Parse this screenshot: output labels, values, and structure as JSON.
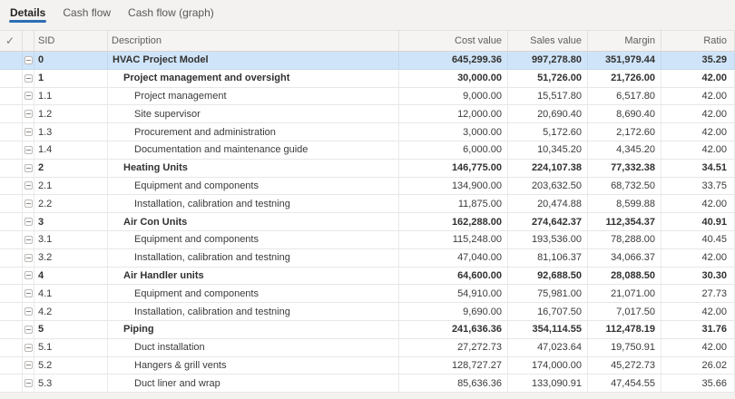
{
  "tabs": [
    {
      "label": "Details",
      "active": true
    },
    {
      "label": "Cash flow",
      "active": false
    },
    {
      "label": "Cash flow (graph)",
      "active": false
    }
  ],
  "icons": {
    "select_all_check": "✓",
    "collapse_box": "minus-in-square"
  },
  "colors": {
    "accent_blue": "#2d6fb4",
    "selected_row_bg": "#cfe4f8",
    "page_bg": "#f3f2f1",
    "grid_line": "#e9e7e5",
    "header_text": "#5f5d5b",
    "body_text": "#3b3a39"
  },
  "table": {
    "headers": {
      "sid": "SID",
      "description": "Description",
      "cost": "Cost value",
      "sales": "Sales value",
      "margin": "Margin",
      "ratio": "Ratio"
    },
    "rows": [
      {
        "sid": "0",
        "desc": "HVAC Project Model",
        "cost": "645,299.36",
        "sales": "997,278.80",
        "margin": "351,979.44",
        "ratio": "35.29",
        "level": 0,
        "bold": true,
        "selected": true
      },
      {
        "sid": "1",
        "desc": "Project management and oversight",
        "cost": "30,000.00",
        "sales": "51,726.00",
        "margin": "21,726.00",
        "ratio": "42.00",
        "level": 1,
        "bold": true,
        "selected": false
      },
      {
        "sid": "1.1",
        "desc": "Project management",
        "cost": "9,000.00",
        "sales": "15,517.80",
        "margin": "6,517.80",
        "ratio": "42.00",
        "level": 2,
        "bold": false,
        "selected": false
      },
      {
        "sid": "1.2",
        "desc": "Site supervisor",
        "cost": "12,000.00",
        "sales": "20,690.40",
        "margin": "8,690.40",
        "ratio": "42.00",
        "level": 2,
        "bold": false,
        "selected": false
      },
      {
        "sid": "1.3",
        "desc": "Procurement and administration",
        "cost": "3,000.00",
        "sales": "5,172.60",
        "margin": "2,172.60",
        "ratio": "42.00",
        "level": 2,
        "bold": false,
        "selected": false
      },
      {
        "sid": "1.4",
        "desc": "Documentation and maintenance guide",
        "cost": "6,000.00",
        "sales": "10,345.20",
        "margin": "4,345.20",
        "ratio": "42.00",
        "level": 2,
        "bold": false,
        "selected": false
      },
      {
        "sid": "2",
        "desc": "Heating Units",
        "cost": "146,775.00",
        "sales": "224,107.38",
        "margin": "77,332.38",
        "ratio": "34.51",
        "level": 1,
        "bold": true,
        "selected": false
      },
      {
        "sid": "2.1",
        "desc": "Equipment and components",
        "cost": "134,900.00",
        "sales": "203,632.50",
        "margin": "68,732.50",
        "ratio": "33.75",
        "level": 2,
        "bold": false,
        "selected": false
      },
      {
        "sid": "2.2",
        "desc": "Installation, calibration and testning",
        "cost": "11,875.00",
        "sales": "20,474.88",
        "margin": "8,599.88",
        "ratio": "42.00",
        "level": 2,
        "bold": false,
        "selected": false
      },
      {
        "sid": "3",
        "desc": "Air Con Units",
        "cost": "162,288.00",
        "sales": "274,642.37",
        "margin": "112,354.37",
        "ratio": "40.91",
        "level": 1,
        "bold": true,
        "selected": false
      },
      {
        "sid": "3.1",
        "desc": "Equipment and components",
        "cost": "115,248.00",
        "sales": "193,536.00",
        "margin": "78,288.00",
        "ratio": "40.45",
        "level": 2,
        "bold": false,
        "selected": false
      },
      {
        "sid": "3.2",
        "desc": "Installation, calibration and testning",
        "cost": "47,040.00",
        "sales": "81,106.37",
        "margin": "34,066.37",
        "ratio": "42.00",
        "level": 2,
        "bold": false,
        "selected": false
      },
      {
        "sid": "4",
        "desc": "Air Handler units",
        "cost": "64,600.00",
        "sales": "92,688.50",
        "margin": "28,088.50",
        "ratio": "30.30",
        "level": 1,
        "bold": true,
        "selected": false
      },
      {
        "sid": "4.1",
        "desc": "Equipment and components",
        "cost": "54,910.00",
        "sales": "75,981.00",
        "margin": "21,071.00",
        "ratio": "27.73",
        "level": 2,
        "bold": false,
        "selected": false
      },
      {
        "sid": "4.2",
        "desc": "Installation, calibration and testning",
        "cost": "9,690.00",
        "sales": "16,707.50",
        "margin": "7,017.50",
        "ratio": "42.00",
        "level": 2,
        "bold": false,
        "selected": false
      },
      {
        "sid": "5",
        "desc": "Piping",
        "cost": "241,636.36",
        "sales": "354,114.55",
        "margin": "112,478.19",
        "ratio": "31.76",
        "level": 1,
        "bold": true,
        "selected": false
      },
      {
        "sid": "5.1",
        "desc": "Duct installation",
        "cost": "27,272.73",
        "sales": "47,023.64",
        "margin": "19,750.91",
        "ratio": "42.00",
        "level": 2,
        "bold": false,
        "selected": false
      },
      {
        "sid": "5.2",
        "desc": "Hangers & grill vents",
        "cost": "128,727.27",
        "sales": "174,000.00",
        "margin": "45,272.73",
        "ratio": "26.02",
        "level": 2,
        "bold": false,
        "selected": false
      },
      {
        "sid": "5.3",
        "desc": "Duct liner and wrap",
        "cost": "85,636.36",
        "sales": "133,090.91",
        "margin": "47,454.55",
        "ratio": "35.66",
        "level": 2,
        "bold": false,
        "selected": false
      }
    ]
  }
}
